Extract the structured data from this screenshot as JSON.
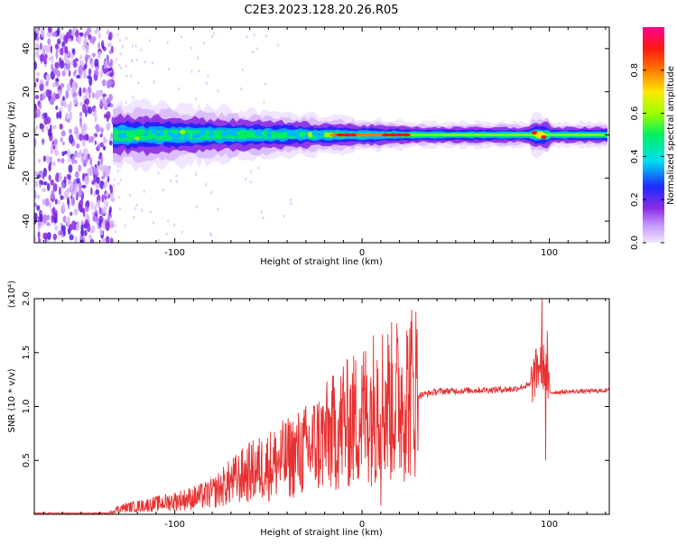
{
  "title": "C2E3.2023.128.20.26.R05",
  "chart_data": [
    {
      "type": "heatmap",
      "xlabel": "Height of straight line (km)",
      "ylabel": "Frequency (Hz)",
      "xlim": [
        -175,
        132
      ],
      "ylim": [
        -50,
        50
      ],
      "xticks": [
        -100,
        0,
        100
      ],
      "xtick_labels": [
        "-100",
        "0",
        "100"
      ],
      "yticks": [
        -40,
        -20,
        0,
        20,
        40
      ],
      "ytick_labels": [
        "-40",
        "-20",
        "0",
        "20",
        "40"
      ],
      "colorbar": {
        "label": "Normalized spectral amplitude",
        "range": [
          0,
          1
        ],
        "ticks": [
          0,
          0.2,
          0.4,
          0.6,
          0.8
        ],
        "tick_labels": [
          "0.0",
          "0.2",
          "0.4",
          "0.6",
          "0.8"
        ],
        "colormap": "rainbow (light purple → purple → blue → cyan → green → yellow → orange → red → magenta)"
      },
      "features": {
        "noise_region_x": [
          -175,
          -133
        ],
        "band_center_hz": 0,
        "band_halfwidth_hz_at_start": 8,
        "band_halfwidth_hz_at_end": 3,
        "red_core_x": [
          -15,
          25
        ],
        "disturbance_x": 95
      }
    },
    {
      "type": "line",
      "xlabel": "Height of straight line (km)",
      "ylabel": "SNR (10 * v/v)",
      "y_multiplier": "(x10⁴)",
      "xlim": [
        -175,
        132
      ],
      "ylim": [
        0,
        2.0
      ],
      "xticks": [
        -100,
        0,
        100
      ],
      "xtick_labels": [
        "-100",
        "0",
        "100"
      ],
      "yticks": [
        0.5,
        1.0,
        1.5,
        2.0
      ],
      "ytick_labels": [
        "0.5",
        "1.0",
        "1.5",
        "2.0"
      ],
      "series": [
        {
          "name": "SNR",
          "color": "#e83030",
          "points": [
            [
              -175,
              0.01
            ],
            [
              -135,
              0.01
            ],
            [
              -130,
              0.05
            ],
            [
              -110,
              0.09
            ],
            [
              -90,
              0.14
            ],
            [
              -80,
              0.18
            ],
            [
              -70,
              0.28
            ],
            [
              -60,
              0.36
            ],
            [
              -50,
              0.42
            ],
            [
              -40,
              0.48
            ],
            [
              -30,
              0.55
            ],
            [
              -20,
              0.65
            ],
            [
              -10,
              0.75
            ],
            [
              0,
              0.85
            ],
            [
              5,
              0.92
            ],
            [
              10,
              0.97
            ],
            [
              15,
              0.95
            ],
            [
              20,
              1.0
            ],
            [
              25,
              1.05
            ],
            [
              30,
              1.1
            ],
            [
              40,
              1.14
            ],
            [
              60,
              1.15
            ],
            [
              80,
              1.16
            ],
            [
              90,
              1.2
            ],
            [
              95,
              1.4
            ],
            [
              98,
              1.35
            ],
            [
              100,
              1.13
            ],
            [
              132,
              1.15
            ]
          ],
          "spikes": [
            [
              -10,
              1.37
            ],
            [
              -5,
              1.05
            ],
            [
              8,
              1.43
            ],
            [
              10,
              0.08
            ],
            [
              14,
              1.02
            ],
            [
              96,
              2.0
            ],
            [
              98,
              0.5
            ],
            [
              99,
              1.7
            ]
          ]
        }
      ]
    }
  ]
}
